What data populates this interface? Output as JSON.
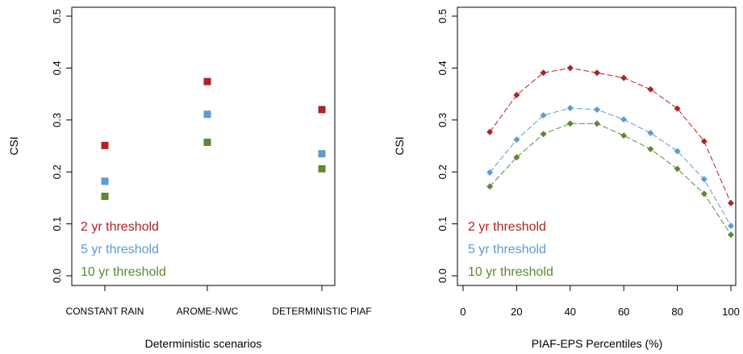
{
  "colors": {
    "series_2yr": "#b22222",
    "series_5yr": "#5b9bd5",
    "series_10yr": "#5a8a32"
  },
  "chart_data": [
    {
      "type": "scatter",
      "title": "",
      "xlabel": "Deterministic scenarios",
      "ylabel": "CSI",
      "categories": [
        "CONSTANT RAIN",
        "AROME-NWC",
        "DETERMINISTIC PIAF"
      ],
      "ylim": [
        0,
        0.5
      ],
      "yticks": [
        0.0,
        0.1,
        0.2,
        0.3,
        0.4,
        0.5
      ],
      "ytick_labels": [
        "0.0",
        "0.1",
        "0.2",
        "0.3",
        "0.4",
        "0.5"
      ],
      "legend_placement": "bottom-left",
      "grid": false,
      "series": [
        {
          "name": "2 yr threshold",
          "color_key": "series_2yr",
          "values": [
            0.251,
            0.374,
            0.32
          ]
        },
        {
          "name": "5 yr threshold",
          "color_key": "series_5yr",
          "values": [
            0.182,
            0.311,
            0.235
          ]
        },
        {
          "name": "10 yr threshold",
          "color_key": "series_10yr",
          "values": [
            0.153,
            0.257,
            0.206
          ]
        }
      ]
    },
    {
      "type": "line",
      "title": "",
      "xlabel": "PIAF-EPS Percentiles (%)",
      "ylabel": "CSI",
      "xlim": [
        0,
        100
      ],
      "xticks": [
        0,
        20,
        40,
        60,
        80,
        100
      ],
      "ylim": [
        0,
        0.5
      ],
      "yticks": [
        0.0,
        0.1,
        0.2,
        0.3,
        0.4,
        0.5
      ],
      "ytick_labels": [
        "0.0",
        "0.1",
        "0.2",
        "0.3",
        "0.4",
        "0.5"
      ],
      "legend_placement": "bottom-left",
      "grid": false,
      "x": [
        10,
        20,
        30,
        40,
        50,
        60,
        70,
        80,
        90,
        100
      ],
      "series": [
        {
          "name": "2 yr threshold",
          "color_key": "series_2yr",
          "values": [
            0.277,
            0.348,
            0.391,
            0.4,
            0.391,
            0.381,
            0.359,
            0.322,
            0.259,
            0.14
          ]
        },
        {
          "name": "5 yr threshold",
          "color_key": "series_5yr",
          "values": [
            0.199,
            0.262,
            0.309,
            0.323,
            0.32,
            0.301,
            0.275,
            0.24,
            0.186,
            0.096
          ]
        },
        {
          "name": "10 yr threshold",
          "color_key": "series_10yr",
          "values": [
            0.172,
            0.228,
            0.273,
            0.293,
            0.293,
            0.27,
            0.244,
            0.206,
            0.158,
            0.079
          ]
        }
      ]
    }
  ]
}
